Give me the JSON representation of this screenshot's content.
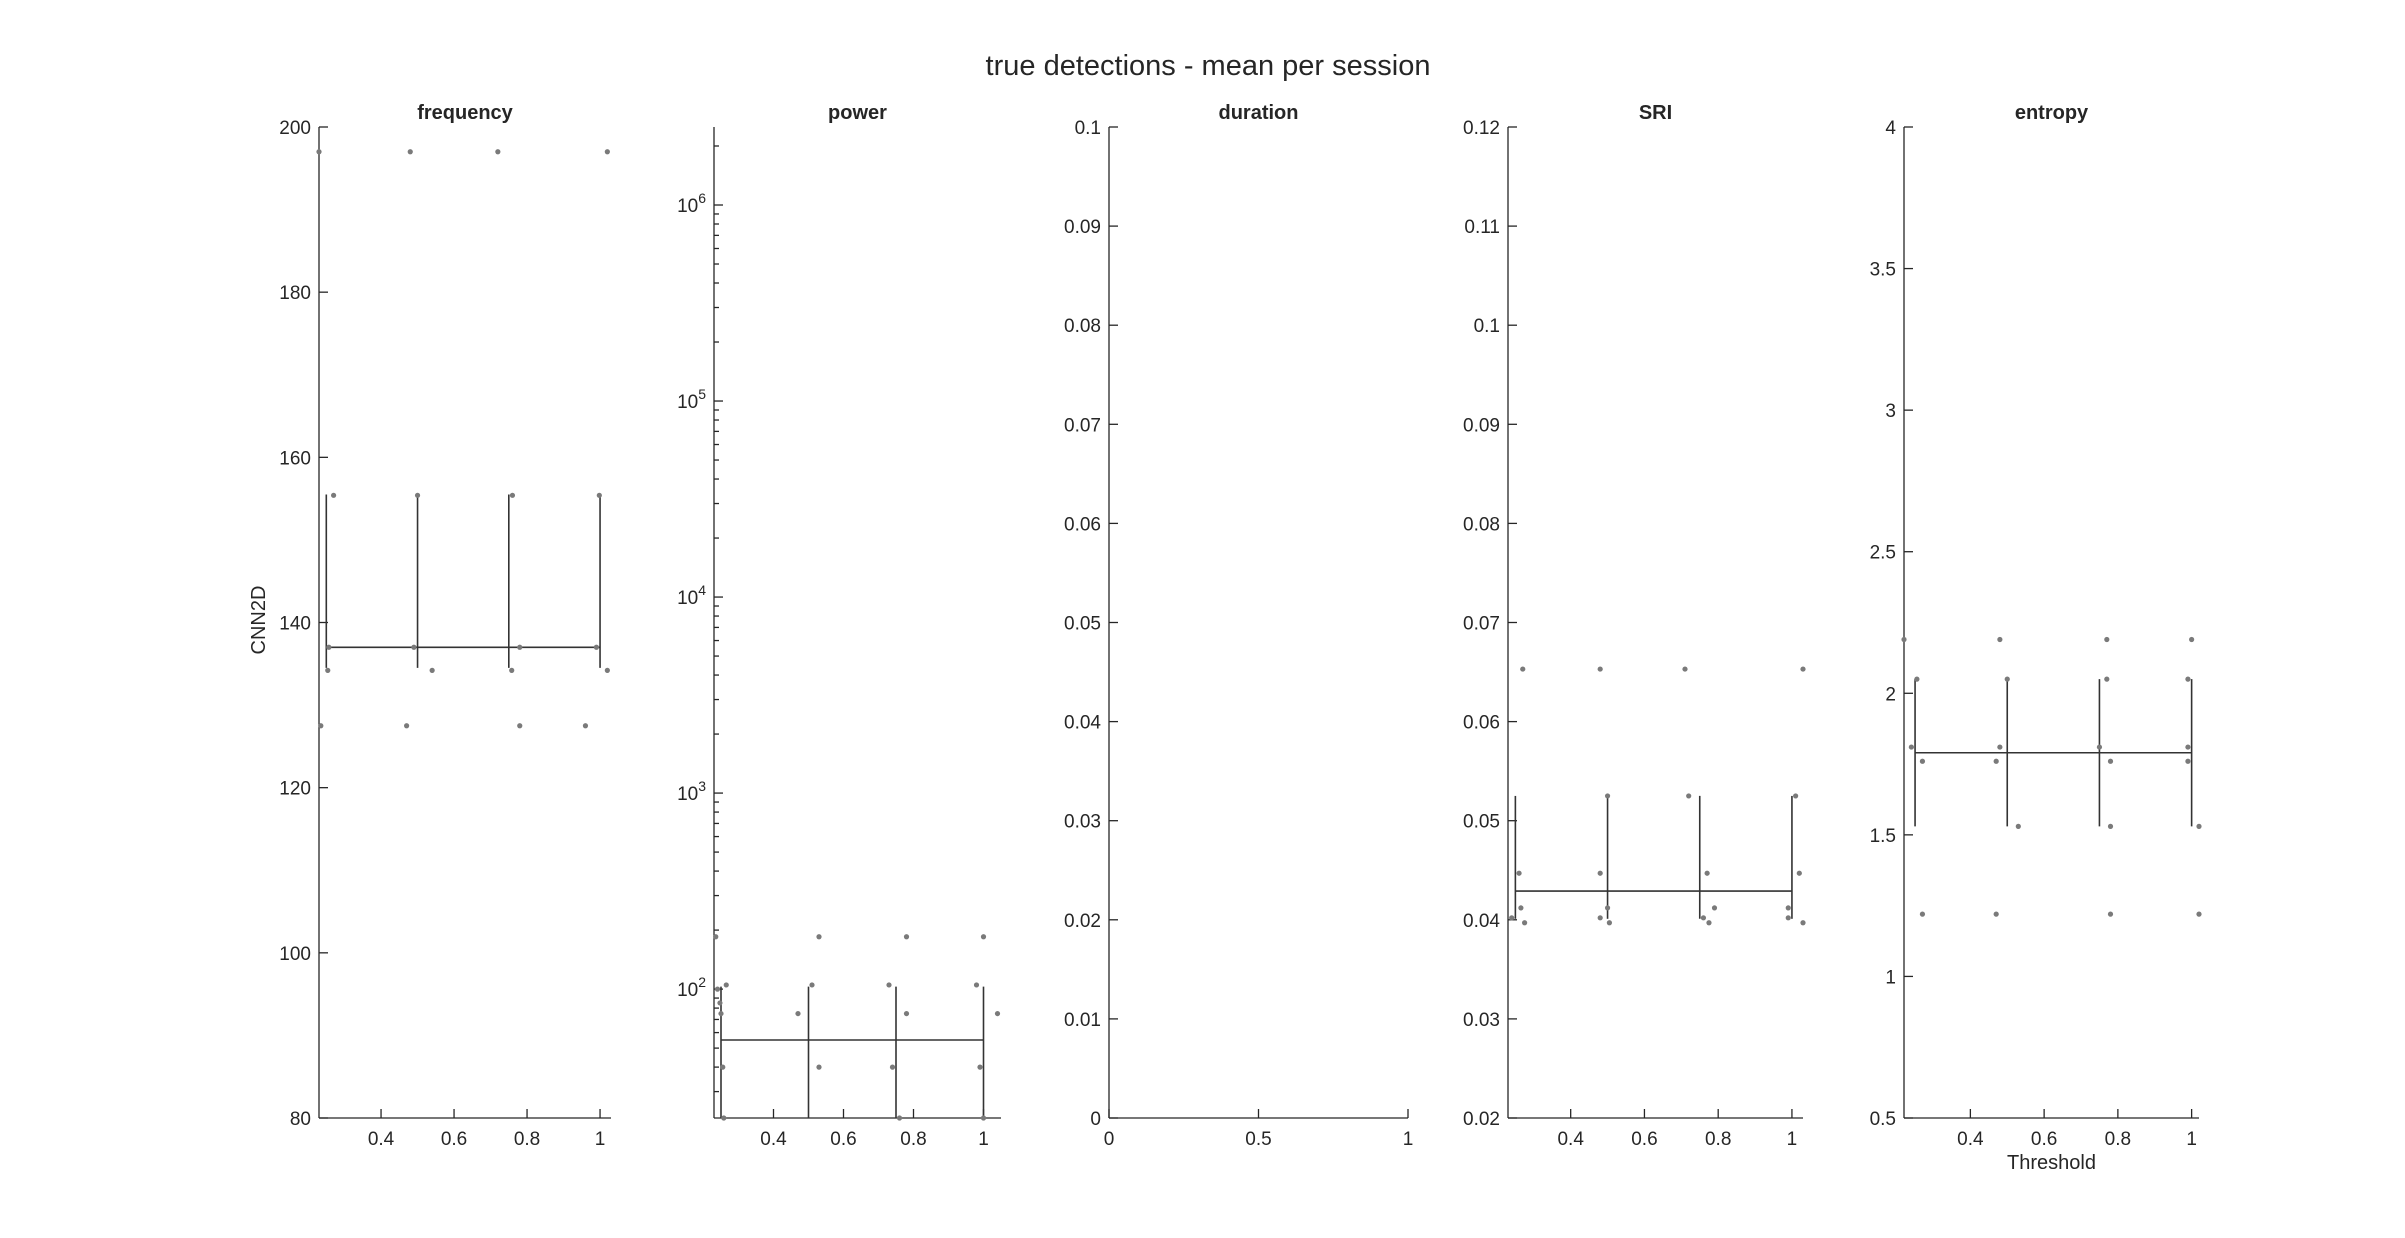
{
  "title": "true detections - mean per session",
  "ylabel": "CNN2D",
  "xlabel": "Threshold",
  "chart_data": [
    {
      "type": "scatter",
      "title": "frequency",
      "xlim": [
        0.23,
        1.03
      ],
      "ylim": [
        80,
        200
      ],
      "xticks": [
        0.4,
        0.6,
        0.8,
        1
      ],
      "xticklabels": [
        "0.4",
        "0.6",
        "0.8",
        "1"
      ],
      "yticks": [
        80,
        100,
        120,
        140,
        160,
        180,
        200
      ],
      "yticklabels": [
        "80",
        "100",
        "120",
        "140",
        "160",
        "180",
        "200"
      ],
      "mean": 137,
      "x": [
        0.25,
        0.5,
        0.75,
        1.0
      ],
      "lower": [
        134.5,
        134.5,
        134.5,
        134.5
      ],
      "upper": [
        155.5,
        155.5,
        155.5,
        155.5
      ],
      "points": [
        [
          0.23,
          197
        ],
        [
          0.254,
          134.2
        ],
        [
          0.257,
          137
        ],
        [
          0.27,
          155.4
        ],
        [
          0.235,
          127.5
        ],
        [
          0.48,
          197
        ],
        [
          0.47,
          127.5
        ],
        [
          0.49,
          137
        ],
        [
          0.5,
          155.4
        ],
        [
          0.54,
          134.2
        ],
        [
          0.72,
          197
        ],
        [
          0.76,
          155.4
        ],
        [
          0.758,
          134.2
        ],
        [
          0.78,
          137
        ],
        [
          0.78,
          127.5
        ],
        [
          1.02,
          197
        ],
        [
          0.998,
          155.4
        ],
        [
          0.99,
          137
        ],
        [
          1.02,
          134.2
        ],
        [
          0.96,
          127.5
        ]
      ]
    },
    {
      "type": "scatter",
      "title": "power",
      "yscale": "log",
      "xlim": [
        0.23,
        1.05
      ],
      "ylim": [
        22,
        2500000
      ],
      "xticks": [
        0.4,
        0.6,
        0.8,
        1
      ],
      "xticklabels": [
        "0.4",
        "0.6",
        "0.8",
        "1"
      ],
      "yticks": [
        100,
        1000,
        10000,
        100000,
        1000000
      ],
      "yticklabels": [
        "10^2",
        "10^3",
        "10^4",
        "10^5",
        "10^6"
      ],
      "mean": 55,
      "x": [
        0.25,
        0.5,
        0.75,
        1.0
      ],
      "lower": [
        22,
        22,
        22,
        22
      ],
      "upper": [
        103,
        103,
        103,
        103
      ],
      "points": [
        [
          0.235,
          185
        ],
        [
          0.24,
          100
        ],
        [
          0.247,
          85
        ],
        [
          0.25,
          75
        ],
        [
          0.255,
          40
        ],
        [
          0.265,
          105
        ],
        [
          0.258,
          22
        ],
        [
          0.47,
          75
        ],
        [
          0.51,
          105
        ],
        [
          0.53,
          185
        ],
        [
          0.53,
          40
        ],
        [
          0.73,
          105
        ],
        [
          0.74,
          40
        ],
        [
          0.78,
          185
        ],
        [
          0.78,
          75
        ],
        [
          0.76,
          22
        ],
        [
          0.98,
          105
        ],
        [
          0.99,
          40
        ],
        [
          1.0,
          185
        ],
        [
          1.04,
          75
        ],
        [
          1.0,
          22
        ]
      ]
    },
    {
      "type": "scatter",
      "title": "duration",
      "xlim": [
        0,
        1
      ],
      "ylim": [
        0,
        0.1
      ],
      "xticks": [
        0,
        0.5,
        1
      ],
      "xticklabels": [
        "0",
        "0.5",
        "1"
      ],
      "yticks": [
        0,
        0.01,
        0.02,
        0.03,
        0.04,
        0.05,
        0.06,
        0.07,
        0.08,
        0.09,
        0.1
      ],
      "yticklabels": [
        "0",
        "0.01",
        "0.02",
        "0.03",
        "0.04",
        "0.05",
        "0.06",
        "0.07",
        "0.08",
        "0.09",
        "0.1"
      ],
      "x": [],
      "lower": [],
      "upper": [],
      "points": []
    },
    {
      "type": "scatter",
      "title": "SRI",
      "xlim": [
        0.23,
        1.03
      ],
      "ylim": [
        0.02,
        0.12
      ],
      "xticks": [
        0.4,
        0.6,
        0.8,
        1
      ],
      "xticklabels": [
        "0.4",
        "0.6",
        "0.8",
        "1"
      ],
      "yticks": [
        0.02,
        0.03,
        0.04,
        0.05,
        0.06,
        0.07,
        0.08,
        0.09,
        0.1,
        0.11,
        0.12
      ],
      "yticklabels": [
        "0.02",
        "0.03",
        "0.04",
        "0.05",
        "0.06",
        "0.07",
        "0.08",
        "0.09",
        "0.1",
        "0.11",
        "0.12"
      ],
      "mean": 0.0429,
      "x": [
        0.25,
        0.5,
        0.75,
        1.0
      ],
      "lower": [
        0.0401,
        0.0401,
        0.0401,
        0.0401
      ],
      "upper": [
        0.0525,
        0.0525,
        0.0525,
        0.0525
      ],
      "points": [
        [
          0.26,
          0.0447
        ],
        [
          0.265,
          0.0412
        ],
        [
          0.27,
          0.0653
        ],
        [
          0.275,
          0.0397
        ],
        [
          0.24,
          0.0402
        ],
        [
          0.48,
          0.0653
        ],
        [
          0.48,
          0.0447
        ],
        [
          0.48,
          0.0402
        ],
        [
          0.5,
          0.0525
        ],
        [
          0.5,
          0.0412
        ],
        [
          0.505,
          0.0397
        ],
        [
          0.71,
          0.0653
        ],
        [
          0.72,
          0.0525
        ],
        [
          0.76,
          0.0402
        ],
        [
          0.77,
          0.0447
        ],
        [
          0.775,
          0.0397
        ],
        [
          0.79,
          0.0412
        ],
        [
          0.99,
          0.0412
        ],
        [
          0.99,
          0.0402
        ],
        [
          1.01,
          0.0525
        ],
        [
          1.02,
          0.0447
        ],
        [
          1.03,
          0.0397
        ],
        [
          1.03,
          0.0653
        ]
      ]
    },
    {
      "type": "scatter",
      "title": "entropy",
      "xlim": [
        0.22,
        1.02
      ],
      "ylim": [
        0.5,
        4
      ],
      "xticks": [
        0.4,
        0.6,
        0.8,
        1
      ],
      "xticklabels": [
        "0.4",
        "0.6",
        "0.8",
        "1"
      ],
      "xlabel": "Threshold",
      "yticks": [
        0.5,
        1,
        1.5,
        2,
        2.5,
        3,
        3.5,
        4
      ],
      "yticklabels": [
        "0.5",
        "1",
        "1.5",
        "2",
        "2.5",
        "3",
        "3.5",
        "4"
      ],
      "mean": 1.79,
      "x": [
        0.25,
        0.5,
        0.75,
        1.0
      ],
      "lower": [
        1.53,
        1.53,
        1.53,
        1.53
      ],
      "upper": [
        2.05,
        2.05,
        2.05,
        2.05
      ],
      "points": [
        [
          0.22,
          2.19
        ],
        [
          0.24,
          1.81
        ],
        [
          0.255,
          2.05
        ],
        [
          0.27,
          1.76
        ],
        [
          0.27,
          1.22
        ],
        [
          0.47,
          1.76
        ],
        [
          0.47,
          1.22
        ],
        [
          0.48,
          1.81
        ],
        [
          0.48,
          2.19
        ],
        [
          0.5,
          2.05
        ],
        [
          0.53,
          1.53
        ],
        [
          0.75,
          1.81
        ],
        [
          0.77,
          2.05
        ],
        [
          0.77,
          2.19
        ],
        [
          0.78,
          1.76
        ],
        [
          0.78,
          1.53
        ],
        [
          0.78,
          1.22
        ],
        [
          0.99,
          1.76
        ],
        [
          0.99,
          1.81
        ],
        [
          0.99,
          2.05
        ],
        [
          1.0,
          2.19
        ],
        [
          1.02,
          1.53
        ],
        [
          1.02,
          1.22
        ]
      ]
    }
  ]
}
